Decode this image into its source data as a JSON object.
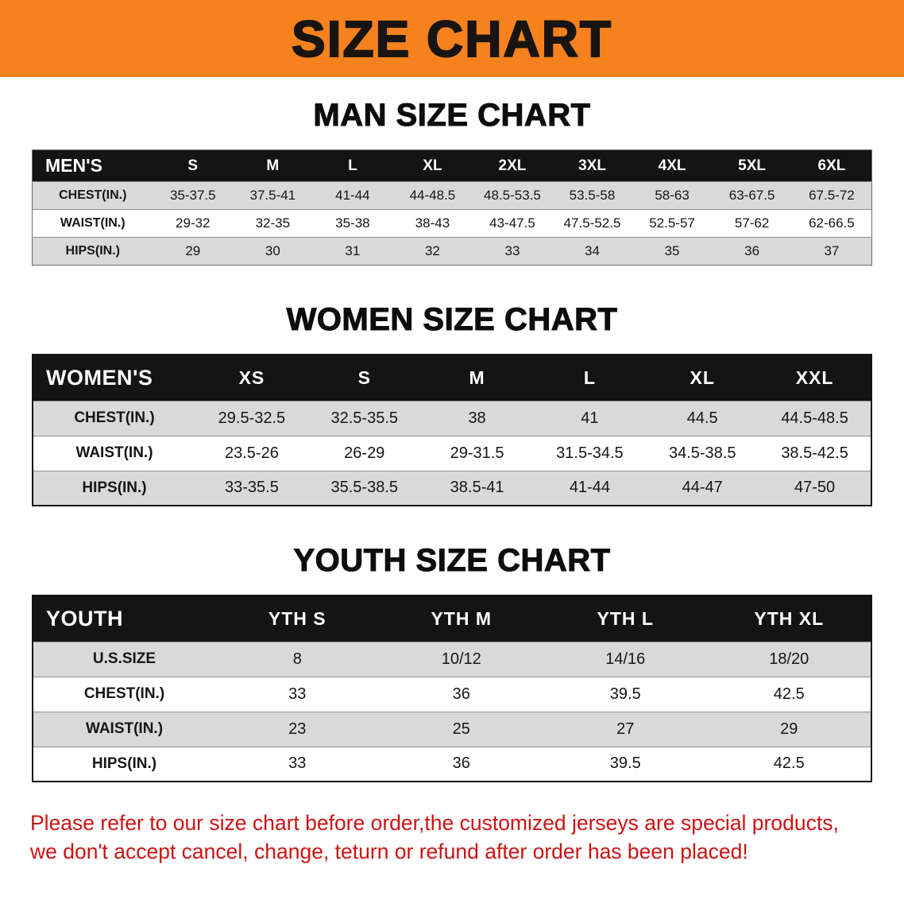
{
  "banner": {
    "title": "SIZE CHART"
  },
  "colors": {
    "banner_bg": "#f5821e",
    "header_row_bg": "#141414",
    "alt_row_bg": "#d9d9d9",
    "note_color": "#cc1414"
  },
  "sections": [
    {
      "id": "men",
      "heading": "MAN SIZE CHART",
      "table": {
        "header": [
          "MEN'S",
          "S",
          "M",
          "L",
          "XL",
          "2XL",
          "3XL",
          "4XL",
          "5XL",
          "6XL"
        ],
        "rows": [
          [
            "CHEST(IN.)",
            "35-37.5",
            "37.5-41",
            "41-44",
            "44-48.5",
            "48.5-53.5",
            "53.5-58",
            "58-63",
            "63-67.5",
            "67.5-72"
          ],
          [
            "WAIST(IN.)",
            "29-32",
            "32-35",
            "35-38",
            "38-43",
            "43-47.5",
            "47.5-52.5",
            "52.5-57",
            "57-62",
            "62-66.5"
          ],
          [
            "HIPS(IN.)",
            "29",
            "30",
            "31",
            "32",
            "33",
            "34",
            "35",
            "36",
            "37"
          ]
        ]
      }
    },
    {
      "id": "women",
      "heading": "WOMEN SIZE CHART",
      "table": {
        "header": [
          "WOMEN'S",
          "XS",
          "S",
          "M",
          "L",
          "XL",
          "XXL"
        ],
        "rows": [
          [
            "CHEST(IN.)",
            "29.5-32.5",
            "32.5-35.5",
            "38",
            "41",
            "44.5",
            "44.5-48.5"
          ],
          [
            "WAIST(IN.)",
            "23.5-26",
            "26-29",
            "29-31.5",
            "31.5-34.5",
            "34.5-38.5",
            "38.5-42.5"
          ],
          [
            "HIPS(IN.)",
            "33-35.5",
            "35.5-38.5",
            "38.5-41",
            "41-44",
            "44-47",
            "47-50"
          ]
        ]
      }
    },
    {
      "id": "youth",
      "heading": "YOUTH SIZE CHART",
      "table": {
        "header": [
          "YOUTH",
          "YTH S",
          "YTH M",
          "YTH L",
          "YTH XL"
        ],
        "rows": [
          [
            "U.S.SIZE",
            "8",
            "10/12",
            "14/16",
            "18/20"
          ],
          [
            "CHEST(IN.)",
            "33",
            "36",
            "39.5",
            "42.5"
          ],
          [
            "WAIST(IN.)",
            "23",
            "25",
            "27",
            "29"
          ],
          [
            "HIPS(IN.)",
            "33",
            "36",
            "39.5",
            "42.5"
          ]
        ]
      }
    }
  ],
  "footer_note": {
    "lines": [
      "Please refer to our size chart before order,the customized jerseys are special products,",
      "we don't accept cancel, change, teturn or refund after order has been placed!"
    ]
  }
}
